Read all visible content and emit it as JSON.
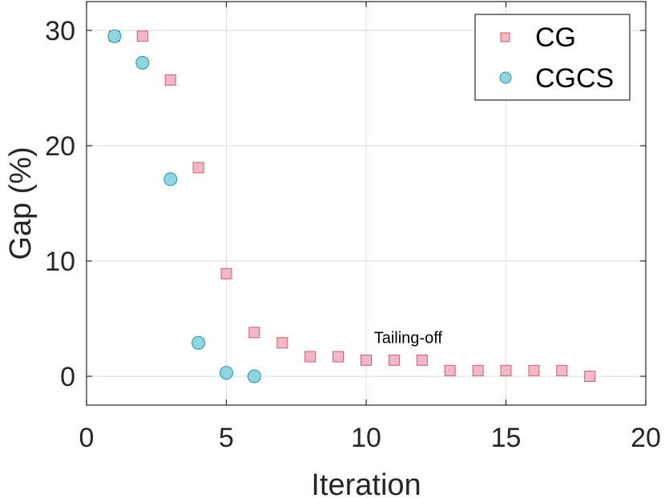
{
  "chart_data": {
    "type": "scatter",
    "title": "",
    "xlabel": "Iteration",
    "ylabel": "Gap (%)",
    "xlim": [
      0,
      20
    ],
    "ylim": [
      -2.5,
      32.5
    ],
    "xticks": [
      0,
      5,
      10,
      15,
      20
    ],
    "yticks": [
      0,
      10,
      20,
      30
    ],
    "xtick_labels": [
      "0",
      "5",
      "10",
      "15",
      "20"
    ],
    "ytick_labels": [
      "0",
      "10",
      "20",
      "30"
    ],
    "grid": true,
    "legend_position": "top-right",
    "series": [
      {
        "name": "CG",
        "marker": "square",
        "color": "#f2b8c6",
        "edge_color": "#d05a78",
        "x": [
          1,
          2,
          3,
          4,
          5,
          6,
          7,
          8,
          9,
          10,
          11,
          12,
          13,
          14,
          15,
          16,
          17,
          18
        ],
        "y": [
          29.5,
          29.5,
          25.7,
          18.1,
          8.9,
          3.8,
          2.9,
          1.7,
          1.7,
          1.4,
          1.4,
          1.4,
          0.5,
          0.5,
          0.5,
          0.5,
          0.5,
          0.0
        ]
      },
      {
        "name": "CGCS",
        "marker": "circle",
        "color": "#8dd6e0",
        "edge_color": "#1f9aaa",
        "x": [
          1,
          2,
          3,
          4,
          5,
          6
        ],
        "y": [
          29.5,
          27.2,
          17.1,
          2.9,
          0.3,
          0.0
        ]
      }
    ],
    "annotations": [
      {
        "text": "Tailing-off",
        "x": 11.5,
        "y": 3.8
      }
    ]
  }
}
